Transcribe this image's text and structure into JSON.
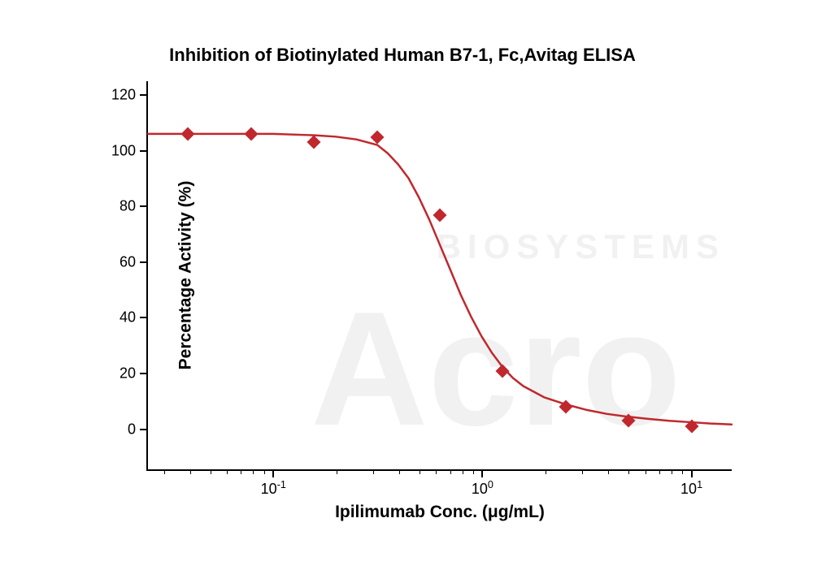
{
  "chart": {
    "type": "scatter-line",
    "title": "Inhibition of Biotinylated Human B7-1, Fc,Avitag ELISA",
    "title_fontsize": 22,
    "xlabel": "Ipilimumab Conc. (μg/mL)",
    "ylabel": "Percentage Activity (%)",
    "label_fontsize": 21,
    "tick_fontsize": 18,
    "xscale": "log",
    "xlim_log10": [
      -1.6,
      1.2
    ],
    "ylim": [
      -15,
      125
    ],
    "ytick_step": 20,
    "yticks": [
      0,
      20,
      40,
      60,
      80,
      100,
      120
    ],
    "xticks_major_log10": [
      -1,
      0,
      1
    ],
    "xticks_major_labels": [
      "10⁻¹",
      "10⁰",
      "10¹"
    ],
    "background_color": "#ffffff",
    "axis_color": "#000000",
    "line_color": "#c0282d",
    "marker_color": "#c0282d",
    "marker_style": "diamond",
    "marker_size": 12,
    "line_width": 2.5,
    "data_x": [
      0.039,
      0.078,
      0.156,
      0.313,
      0.625,
      1.25,
      2.5,
      5,
      10
    ],
    "data_y": [
      106,
      106,
      103,
      105,
      77,
      21,
      8,
      3,
      1
    ],
    "curve_points": [
      [
        -1.6,
        106
      ],
      [
        -1.2,
        106
      ],
      [
        -1.0,
        106
      ],
      [
        -0.8,
        105.5
      ],
      [
        -0.7,
        105
      ],
      [
        -0.6,
        104
      ],
      [
        -0.5,
        102
      ],
      [
        -0.45,
        99
      ],
      [
        -0.4,
        95
      ],
      [
        -0.35,
        90
      ],
      [
        -0.3,
        83
      ],
      [
        -0.25,
        75
      ],
      [
        -0.2,
        66
      ],
      [
        -0.15,
        57
      ],
      [
        -0.1,
        48
      ],
      [
        -0.05,
        40
      ],
      [
        0,
        33
      ],
      [
        0.05,
        27
      ],
      [
        0.1,
        22
      ],
      [
        0.15,
        18
      ],
      [
        0.2,
        15
      ],
      [
        0.3,
        11
      ],
      [
        0.4,
        8.5
      ],
      [
        0.5,
        6.5
      ],
      [
        0.6,
        5
      ],
      [
        0.7,
        4
      ],
      [
        0.8,
        3.2
      ],
      [
        0.9,
        2.5
      ],
      [
        1.0,
        2
      ],
      [
        1.1,
        1.5
      ],
      [
        1.2,
        1.2
      ]
    ]
  },
  "watermark": {
    "line1": "BIOSYSTEMS",
    "line2": "Acro"
  }
}
